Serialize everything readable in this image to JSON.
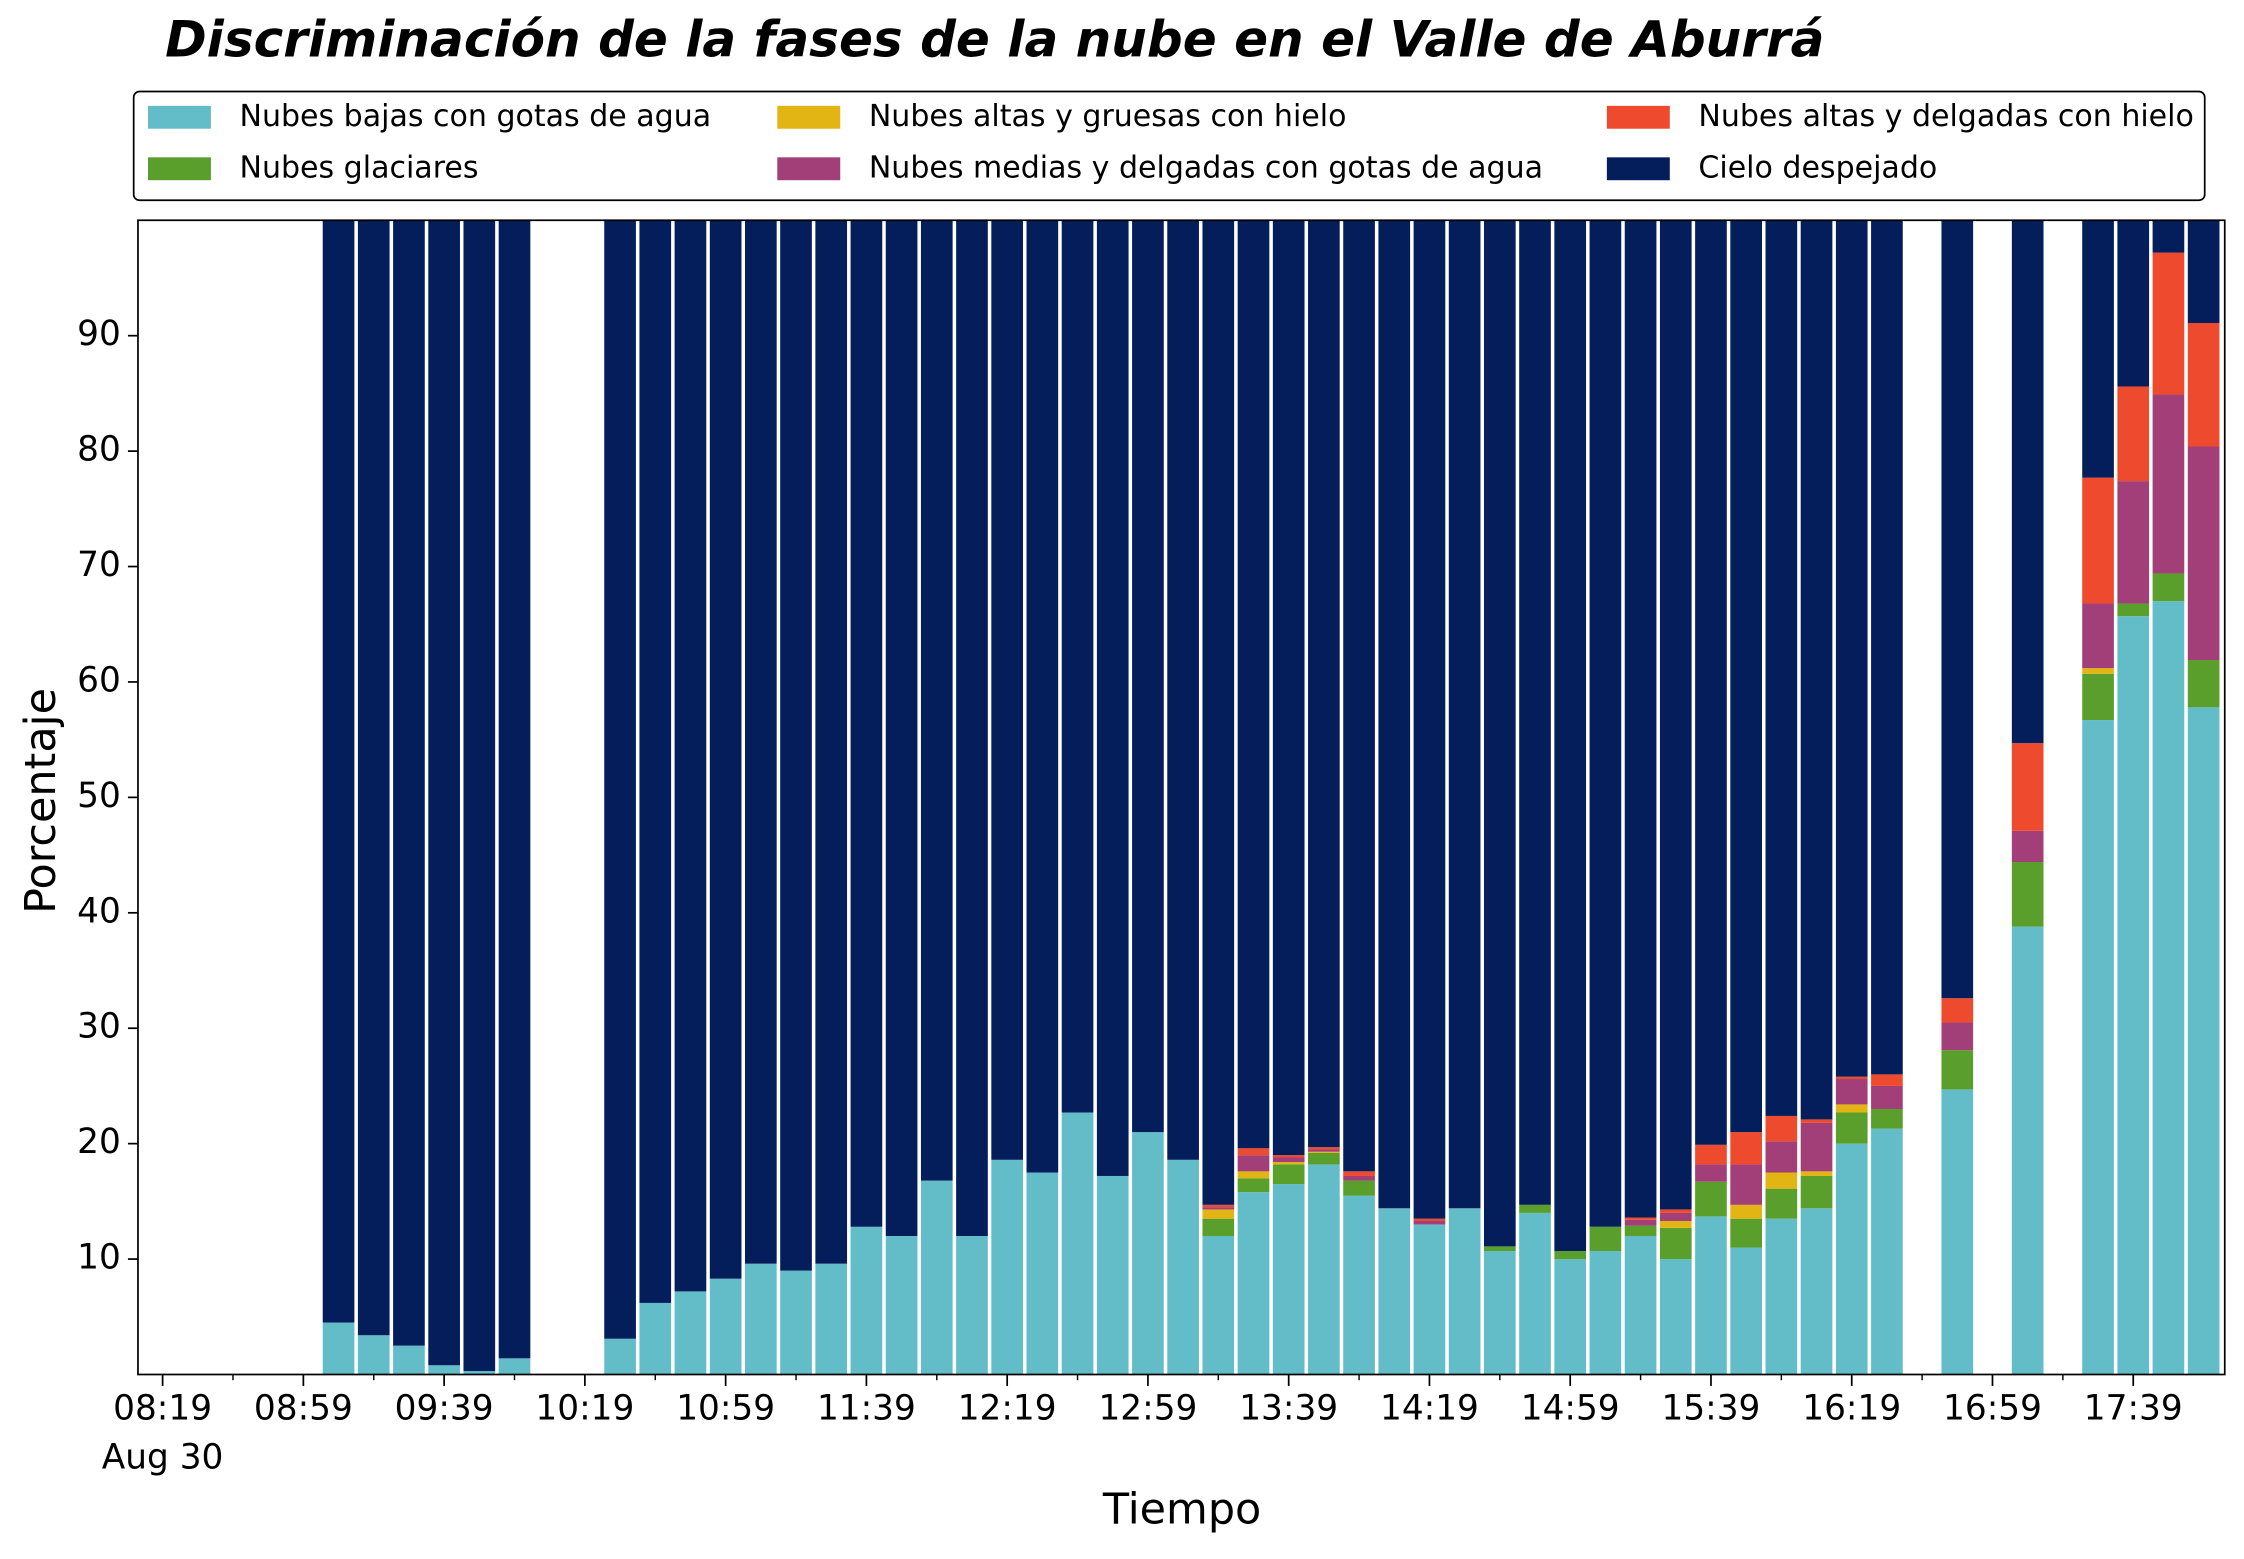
{
  "chart_data": {
    "type": "stacked_bar",
    "title": "Discriminación de la fases de la nube en el Valle de Aburrá",
    "xlabel": "Tiempo",
    "ylabel": "Porcentaje",
    "x_date": "Aug 30",
    "x": [
      "09:09",
      "09:19",
      "09:29",
      "09:39",
      "09:49",
      "09:59",
      "10:29",
      "10:39",
      "10:49",
      "10:59",
      "11:09",
      "11:19",
      "11:29",
      "11:39",
      "11:49",
      "11:59",
      "12:09",
      "12:19",
      "12:29",
      "12:39",
      "12:49",
      "12:59",
      "13:09",
      "13:19",
      "13:29",
      "13:39",
      "13:49",
      "13:59",
      "14:09",
      "14:19",
      "14:29",
      "14:39",
      "14:49",
      "14:59",
      "15:09",
      "15:19",
      "15:29",
      "15:39",
      "15:49",
      "15:59",
      "16:09",
      "16:19",
      "16:29",
      "16:49",
      "17:09",
      "17:29",
      "17:39",
      "17:49",
      "17:59"
    ],
    "xlim": [
      "08:12",
      "18:05"
    ],
    "xticks": [
      "08:19",
      "08:59",
      "09:39",
      "10:19",
      "10:59",
      "11:39",
      "12:19",
      "12:59",
      "13:39",
      "14:19",
      "14:59",
      "15:39",
      "16:19",
      "16:59",
      "17:39"
    ],
    "ylim": [
      0,
      100
    ],
    "yticks": [
      10,
      20,
      30,
      40,
      50,
      60,
      70,
      80,
      90
    ],
    "legend": "top",
    "series": [
      {
        "name": "Nubes bajas con gotas de agua",
        "color": "#63bdc9",
        "values": [
          4.5,
          3.4,
          2.5,
          0.8,
          0.3,
          1.4,
          3.1,
          6.2,
          7.2,
          8.3,
          9.6,
          9.0,
          9.6,
          12.8,
          12.0,
          16.8,
          12.0,
          18.6,
          17.5,
          22.7,
          17.2,
          21.0,
          18.6,
          12.0,
          15.8,
          16.5,
          18.2,
          15.5,
          14.4,
          13.0,
          14.4,
          10.7,
          14.0,
          10.0,
          10.7,
          12.0,
          10.0,
          13.7,
          11.0,
          13.5,
          14.4,
          20.0,
          21.3,
          24.7,
          38.8,
          56.7,
          65.7,
          67.0,
          57.8
        ]
      },
      {
        "name": "Nubes glaciares",
        "color": "#5a9e2b",
        "values": [
          0,
          0,
          0,
          0,
          0,
          0,
          0,
          0,
          0,
          0,
          0,
          0,
          0,
          0,
          0,
          0,
          0,
          0,
          0,
          0,
          0,
          0,
          0,
          1.5,
          1.2,
          1.7,
          1.0,
          1.3,
          0,
          0,
          0,
          0.4,
          0.7,
          0.7,
          2.1,
          0.9,
          2.7,
          3.0,
          2.5,
          2.6,
          2.8,
          2.7,
          1.7,
          3.4,
          5.6,
          4.0,
          1.1,
          2.4,
          4.1
        ]
      },
      {
        "name": "Nubes altas y gruesas con hielo",
        "color": "#e2b414",
        "values": [
          0,
          0,
          0,
          0,
          0,
          0,
          0,
          0,
          0,
          0,
          0,
          0,
          0,
          0,
          0,
          0,
          0,
          0,
          0,
          0,
          0,
          0,
          0,
          0.8,
          0.6,
          0.2,
          0.1,
          0,
          0,
          0,
          0,
          0,
          0,
          0,
          0,
          0,
          0.6,
          0,
          1.2,
          1.4,
          0.4,
          0.7,
          0,
          0,
          0,
          0.5,
          0,
          0,
          0
        ]
      },
      {
        "name": "Nubes medias y delgadas con gotas de agua",
        "color": "#a23e78",
        "values": [
          0,
          0,
          0,
          0,
          0,
          0,
          0,
          0,
          0,
          0,
          0,
          0,
          0,
          0,
          0,
          0,
          0,
          0,
          0,
          0,
          0,
          0,
          0,
          0.2,
          1.4,
          0.4,
          0.2,
          0.4,
          0,
          0.3,
          0,
          0,
          0,
          0,
          0,
          0.5,
          0.7,
          1.5,
          3.5,
          2.7,
          4.2,
          2.2,
          2.0,
          2.4,
          2.7,
          5.6,
          10.6,
          15.5,
          18.5
        ]
      },
      {
        "name": "Nubes altas y delgadas con hielo",
        "color": "#ee4a2e",
        "values": [
          0,
          0,
          0,
          0,
          0,
          0,
          0,
          0,
          0,
          0,
          0,
          0,
          0,
          0,
          0,
          0,
          0,
          0,
          0,
          0,
          0,
          0,
          0,
          0.2,
          0.6,
          0.2,
          0.2,
          0.4,
          0,
          0.2,
          0,
          0,
          0,
          0,
          0,
          0.2,
          0.3,
          1.7,
          2.8,
          2.2,
          0.3,
          0.2,
          1.0,
          2.1,
          7.6,
          10.9,
          8.2,
          12.3,
          10.7
        ]
      },
      {
        "name": "Cielo despejado",
        "color": "#041e5c",
        "values": [
          95.5,
          96.6,
          97.5,
          99.2,
          99.7,
          98.6,
          96.9,
          93.8,
          92.8,
          91.7,
          90.4,
          91.0,
          90.4,
          87.2,
          88.0,
          83.2,
          88.0,
          81.4,
          82.5,
          77.3,
          82.8,
          79.0,
          81.4,
          85.3,
          80.4,
          81.0,
          80.3,
          82.4,
          85.6,
          86.5,
          85.6,
          88.9,
          85.3,
          89.3,
          87.2,
          86.4,
          85.7,
          80.1,
          79.0,
          77.6,
          77.9,
          74.2,
          74.0,
          67.4,
          45.3,
          22.3,
          14.4,
          2.8,
          8.9
        ]
      }
    ]
  }
}
